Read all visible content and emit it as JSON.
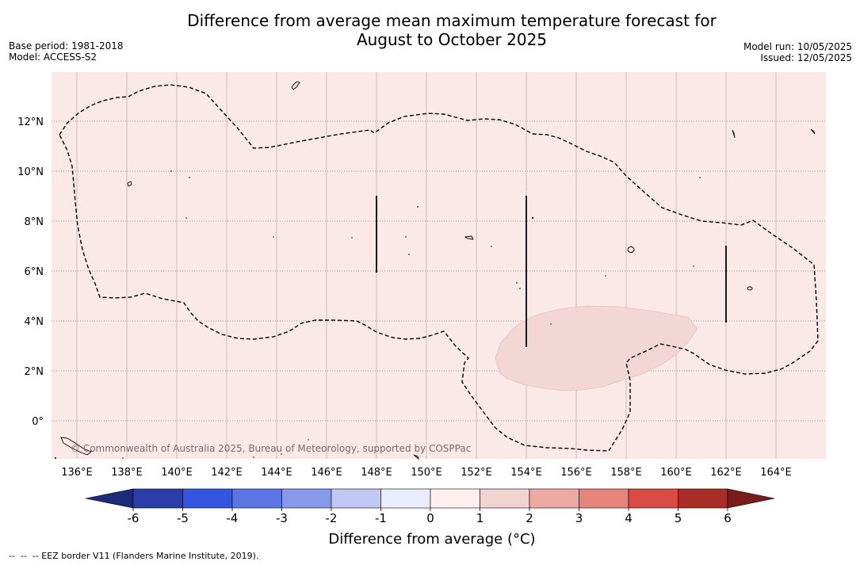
{
  "title": {
    "line1": "Difference from average mean maximum temperature forecast for",
    "line2": "August to October 2025"
  },
  "meta_left": {
    "base_period": "Base period: 1981-2018",
    "model": "Model: ACCESS-S2"
  },
  "meta_right": {
    "model_run": "Model run: 10/05/2025",
    "issued": "Issued: 12/05/2025"
  },
  "map": {
    "background_color": "#fbe9e8",
    "anomaly_patch_color": "#f3d7d5",
    "lon_labels": [
      "136°E",
      "138°E",
      "140°E",
      "142°E",
      "144°E",
      "146°E",
      "148°E",
      "150°E",
      "152°E",
      "154°E",
      "156°E",
      "158°E",
      "160°E",
      "162°E",
      "164°E"
    ],
    "lat_labels": [
      "12°N",
      "10°N",
      "8°N",
      "6°N",
      "4°N",
      "2°N",
      "0°"
    ],
    "copyright": "© Commonwealth of Australia 2025, Bureau of Meteorology, supported by COSPPac"
  },
  "colorbar": {
    "ticks": [
      "-6",
      "-5",
      "-4",
      "-3",
      "-2",
      "-1",
      "0",
      "1",
      "2",
      "3",
      "4",
      "5",
      "6"
    ],
    "colors": [
      "#2a3da8",
      "#3355e0",
      "#5b76e4",
      "#8799ea",
      "#c0c8f3",
      "#eaedfb",
      "#fdf0ef",
      "#f1d4d1",
      "#ebaaa3",
      "#e6857c",
      "#d94b44",
      "#a92c27"
    ],
    "under_color": "#1c2a7a",
    "over_color": "#7a1c1b",
    "label": "Difference from average (°C)"
  },
  "footnote": "--  --  -- EEZ border V11 (Flanders Marine Institute, 2019)."
}
